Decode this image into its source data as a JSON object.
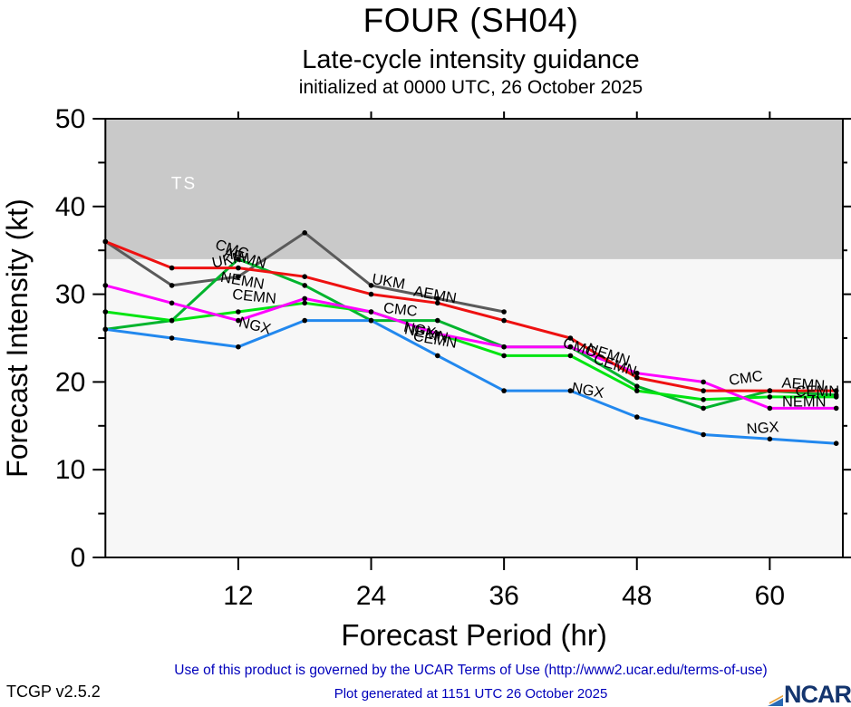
{
  "header": {
    "title": "FOUR (SH04)",
    "subtitle": "Late-cycle intensity guidance",
    "init_line": "initialized at 0000 UTC, 26 October 2025"
  },
  "footer": {
    "terms": "Use of this product is governed by the UCAR Terms of Use (http://www2.ucar.edu/terms-of-use)",
    "version": "TCGP v2.5.2",
    "generated": "Plot generated at 1151 UTC   26 October 2025",
    "logo_text": "NCAR"
  },
  "colors": {
    "ts_band": "#c9c9c9",
    "plot_bg": "#f7f7f7",
    "axis": "#000000",
    "footer_link": "#0000bb",
    "logo_blue": "#2a6bb5",
    "logo_orange": "#e8a33d"
  },
  "chart_data": {
    "type": "line",
    "title": "FOUR (SH04)",
    "subtitle": "Late-cycle intensity guidance",
    "init_line": "initialized at 0000 UTC, 26 October 2025",
    "xlabel": "Forecast Period (hr)",
    "ylabel": "Forecast Intensity (kt)",
    "xlim": [
      0,
      66.6
    ],
    "ylim": [
      0,
      50
    ],
    "xticks": [
      12,
      24,
      36,
      48,
      60
    ],
    "yticks": [
      0,
      10,
      20,
      30,
      40,
      50
    ],
    "yticks_minor": [
      5,
      15,
      25,
      35,
      45
    ],
    "grid": false,
    "legend": "inline-labels",
    "ts_band": {
      "label": "TS",
      "from": 34,
      "to": 50
    },
    "x": [
      0,
      6,
      12,
      18,
      24,
      30,
      36,
      42,
      48,
      54,
      60,
      66
    ],
    "series": [
      {
        "name": "UKM",
        "color": "#5a5a5a",
        "values": [
          36,
          31,
          32,
          37,
          31,
          29.5,
          28,
          null,
          null,
          null,
          null,
          null
        ]
      },
      {
        "name": "CMC",
        "color": "#00b42d",
        "values": [
          26,
          27,
          34,
          31,
          27,
          27,
          24,
          24,
          19.5,
          17,
          19,
          18.5
        ]
      },
      {
        "name": "CEMN",
        "color": "#00e411",
        "values": [
          28,
          27,
          28,
          29,
          28,
          25.5,
          23,
          23,
          19,
          18,
          18.3,
          18.3
        ]
      },
      {
        "name": "NEMN",
        "color": "#ff00ff",
        "values": [
          31,
          29,
          27,
          29.5,
          28,
          25.5,
          24,
          24,
          21,
          20,
          17,
          17
        ]
      },
      {
        "name": "NGX",
        "color": "#2288ee",
        "values": [
          26,
          25,
          24,
          27,
          27,
          23,
          19,
          19,
          16,
          14,
          13.5,
          13
        ]
      },
      {
        "name": "AEMN",
        "color": "#ee1111",
        "values": [
          36,
          33,
          33,
          32,
          30,
          29,
          27,
          25,
          20.5,
          19,
          19,
          19
        ]
      }
    ],
    "inline_labels": [
      {
        "text": "TS",
        "hr": 7.1,
        "kt": 42.0,
        "rot": 0,
        "color": "#ffffff",
        "size": 19
      },
      {
        "text": "CMC",
        "hr": 11.3,
        "kt": 34.6,
        "rot": 18
      },
      {
        "text": "UKM",
        "hr": 11.2,
        "kt": 33.4,
        "rot": -12
      },
      {
        "text": "AEMN",
        "hr": 12.5,
        "kt": 33.6,
        "rot": 16
      },
      {
        "text": "NEMN",
        "hr": 12.3,
        "kt": 31.0,
        "rot": 10
      },
      {
        "text": "CEMN",
        "hr": 13.4,
        "kt": 29.2,
        "rot": 6
      },
      {
        "text": "NGX",
        "hr": 13.4,
        "kt": 25.9,
        "rot": 14
      },
      {
        "text": "UKM",
        "hr": 25.5,
        "kt": 30.9,
        "rot": 10
      },
      {
        "text": "AEMN",
        "hr": 29.7,
        "kt": 29.4,
        "rot": 10
      },
      {
        "text": "CMC",
        "hr": 26.6,
        "kt": 27.7,
        "rot": 6
      },
      {
        "text": "NGX",
        "hr": 28.3,
        "kt": 25.4,
        "rot": 12
      },
      {
        "text": "NEMN",
        "hr": 28.9,
        "kt": 25.0,
        "rot": 12
      },
      {
        "text": "CEMN",
        "hr": 29.7,
        "kt": 24.3,
        "rot": 10
      },
      {
        "text": "CMC",
        "hr": 42.7,
        "kt": 23.4,
        "rot": 18
      },
      {
        "text": "NEMN",
        "hr": 45.3,
        "kt": 22.6,
        "rot": 18
      },
      {
        "text": "CEMN",
        "hr": 45.9,
        "kt": 21.4,
        "rot": 18
      },
      {
        "text": "NGX",
        "hr": 43.5,
        "kt": 18.5,
        "rot": 10
      },
      {
        "text": "CMC",
        "hr": 57.9,
        "kt": 19.9,
        "rot": -8
      },
      {
        "text": "AEMN",
        "hr": 63.0,
        "kt": 19.2,
        "rot": 4
      },
      {
        "text": "CEMN",
        "hr": 64.3,
        "kt": 18.4,
        "rot": 0
      },
      {
        "text": "NEMN",
        "hr": 63.1,
        "kt": 17.2,
        "rot": 0
      },
      {
        "text": "NGX",
        "hr": 59.4,
        "kt": 14.2,
        "rot": -4
      }
    ]
  }
}
